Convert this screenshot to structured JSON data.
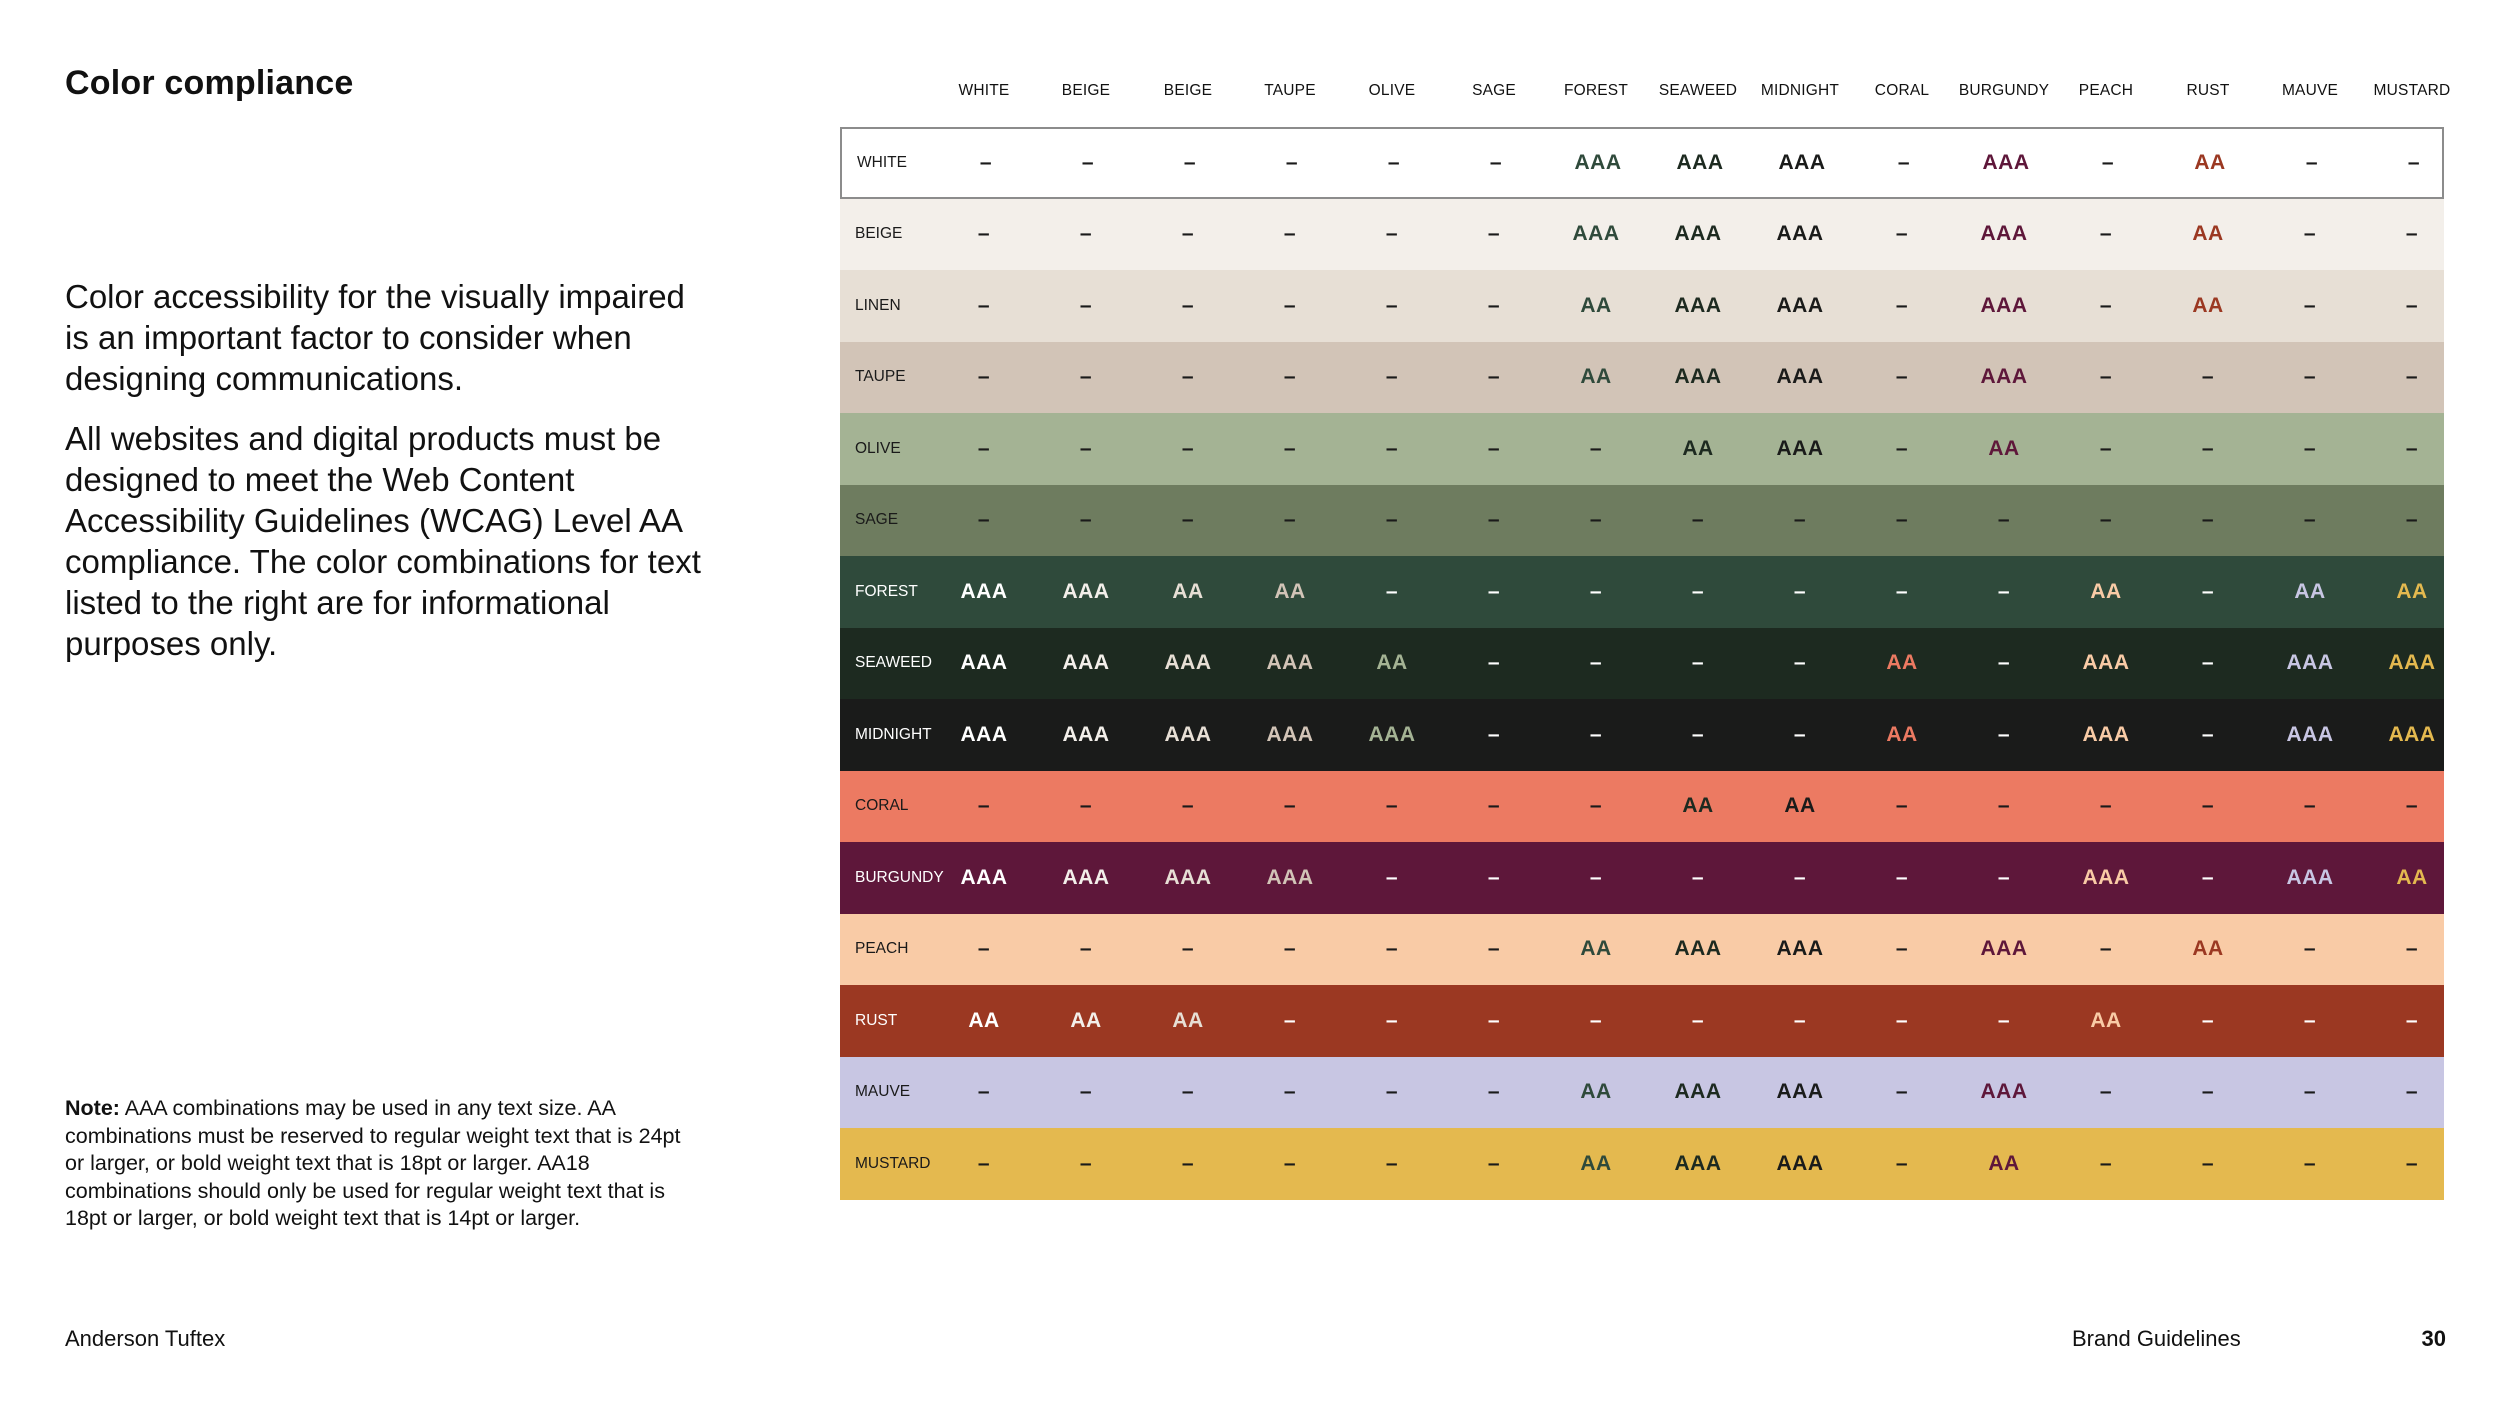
{
  "title": "Color compliance",
  "intro": [
    "Color accessibility for the visually impaired is an important factor to consider when designing communications.",
    "All websites and digital products must be designed to meet the Web Content Accessibility Guidelines (WCAG) Level AA compliance. The color combinations for text listed to the right are for informational purposes only."
  ],
  "note": {
    "label": "Note:",
    "text": " AAA combinations may be used in any text size. AA combinations must be reserved to regular weight text that is 24pt or larger, or bold weight text that is 18pt or larger. AA18 combinations should only be used for regular weight text that is 18pt or larger, or bold weight text that is 14pt or larger."
  },
  "footer": {
    "brand": "Anderson Tuftex",
    "doc": "Brand Guidelines",
    "page": "30"
  },
  "columns": [
    {
      "label": "WHITE",
      "color": "#ffffff"
    },
    {
      "label": "BEIGE",
      "color": "#f3efea"
    },
    {
      "label": "BEIGE",
      "color": "#e7dfd5"
    },
    {
      "label": "TAUPE",
      "color": "#d2c4b7"
    },
    {
      "label": "OLIVE",
      "color": "#a4b394"
    },
    {
      "label": "SAGE",
      "color": "#6e7c5f"
    },
    {
      "label": "FOREST",
      "color": "#2f4a3b"
    },
    {
      "label": "SEAWEED",
      "color": "#1d2a20"
    },
    {
      "label": "MIDNIGHT",
      "color": "#1a1b1a"
    },
    {
      "label": "CORAL",
      "color": "#ec7a62"
    },
    {
      "label": "BURGUNDY",
      "color": "#5e173a"
    },
    {
      "label": "PEACH",
      "color": "#f9cba6"
    },
    {
      "label": "RUST",
      "color": "#9b3822"
    },
    {
      "label": "MAUVE",
      "color": "#c8c6e3"
    },
    {
      "label": "MUSTARD",
      "color": "#e4b94f"
    }
  ],
  "rows": [
    {
      "label": "WHITE",
      "bg": "#ffffff",
      "fg": "#1a1a1a",
      "cells": [
        "–",
        "–",
        "–",
        "–",
        "–",
        "–",
        "AAA",
        "AAA",
        "AAA",
        "–",
        "AAA",
        "–",
        "AA",
        "–",
        "–"
      ]
    },
    {
      "label": "BEIGE",
      "bg": "#f3efea",
      "fg": "#1a1a1a",
      "cells": [
        "–",
        "–",
        "–",
        "–",
        "–",
        "–",
        "AAA",
        "AAA",
        "AAA",
        "–",
        "AAA",
        "–",
        "AA",
        "–",
        "–"
      ]
    },
    {
      "label": "LINEN",
      "bg": "#e7dfd5",
      "fg": "#1a1a1a",
      "cells": [
        "–",
        "–",
        "–",
        "–",
        "–",
        "–",
        "AA",
        "AAA",
        "AAA",
        "–",
        "AAA",
        "–",
        "AA",
        "–",
        "–"
      ]
    },
    {
      "label": "TAUPE",
      "bg": "#d2c4b7",
      "fg": "#1a1a1a",
      "cells": [
        "–",
        "–",
        "–",
        "–",
        "–",
        "–",
        "AA",
        "AAA",
        "AAA",
        "–",
        "AAA",
        "–",
        "–",
        "–",
        "–"
      ]
    },
    {
      "label": "OLIVE",
      "bg": "#a4b394",
      "fg": "#1a1a1a",
      "cells": [
        "–",
        "–",
        "–",
        "–",
        "–",
        "–",
        "–",
        "AA",
        "AAA",
        "–",
        "AA",
        "–",
        "–",
        "–",
        "–"
      ]
    },
    {
      "label": "SAGE",
      "bg": "#6e7c5f",
      "fg": "#1a1a1a",
      "cells": [
        "–",
        "–",
        "–",
        "–",
        "–",
        "–",
        "–",
        "–",
        "–",
        "–",
        "–",
        "–",
        "–",
        "–",
        "–"
      ]
    },
    {
      "label": "FOREST",
      "bg": "#2f4a3b",
      "fg": "#ffffff",
      "cells": [
        "AAA",
        "AAA",
        "AA",
        "AA",
        "–",
        "–",
        "–",
        "–",
        "–",
        "–",
        "–",
        "AA",
        "–",
        "AA",
        "AA"
      ]
    },
    {
      "label": "SEAWEED",
      "bg": "#1d2a20",
      "fg": "#ffffff",
      "cells": [
        "AAA",
        "AAA",
        "AAA",
        "AAA",
        "AA",
        "–",
        "–",
        "–",
        "–",
        "AA",
        "–",
        "AAA",
        "–",
        "AAA",
        "AAA"
      ]
    },
    {
      "label": "MIDNIGHT",
      "bg": "#1a1b1a",
      "fg": "#ffffff",
      "cells": [
        "AAA",
        "AAA",
        "AAA",
        "AAA",
        "AAA",
        "–",
        "–",
        "–",
        "–",
        "AA",
        "–",
        "AAA",
        "–",
        "AAA",
        "AAA"
      ]
    },
    {
      "label": "CORAL",
      "bg": "#ec7a62",
      "fg": "#1a1a1a",
      "cells": [
        "–",
        "–",
        "–",
        "–",
        "–",
        "–",
        "–",
        "AA",
        "AA",
        "–",
        "–",
        "–",
        "–",
        "–",
        "–"
      ]
    },
    {
      "label": "BURGUNDY",
      "bg": "#5e173a",
      "fg": "#ffffff",
      "cells": [
        "AAA",
        "AAA",
        "AAA",
        "AAA",
        "–",
        "–",
        "–",
        "–",
        "–",
        "–",
        "–",
        "AAA",
        "–",
        "AAA",
        "AA"
      ]
    },
    {
      "label": "PEACH",
      "bg": "#f9cba6",
      "fg": "#1a1a1a",
      "cells": [
        "–",
        "–",
        "–",
        "–",
        "–",
        "–",
        "AA",
        "AAA",
        "AAA",
        "–",
        "AAA",
        "–",
        "AA",
        "–",
        "–"
      ]
    },
    {
      "label": "RUST",
      "bg": "#9b3822",
      "fg": "#ffffff",
      "cells": [
        "AA",
        "AA",
        "AA",
        "–",
        "–",
        "–",
        "–",
        "–",
        "–",
        "–",
        "–",
        "AA",
        "–",
        "–",
        "–"
      ]
    },
    {
      "label": "MAUVE",
      "bg": "#c8c6e3",
      "fg": "#1a1a1a",
      "cells": [
        "–",
        "–",
        "–",
        "–",
        "–",
        "–",
        "AA",
        "AAA",
        "AAA",
        "–",
        "AAA",
        "–",
        "–",
        "–",
        "–"
      ]
    },
    {
      "label": "MUSTARD",
      "bg": "#e4b94f",
      "fg": "#1a1a1a",
      "cells": [
        "–",
        "–",
        "–",
        "–",
        "–",
        "–",
        "AA",
        "AAA",
        "AAA",
        "–",
        "AA",
        "–",
        "–",
        "–",
        "–"
      ]
    }
  ]
}
